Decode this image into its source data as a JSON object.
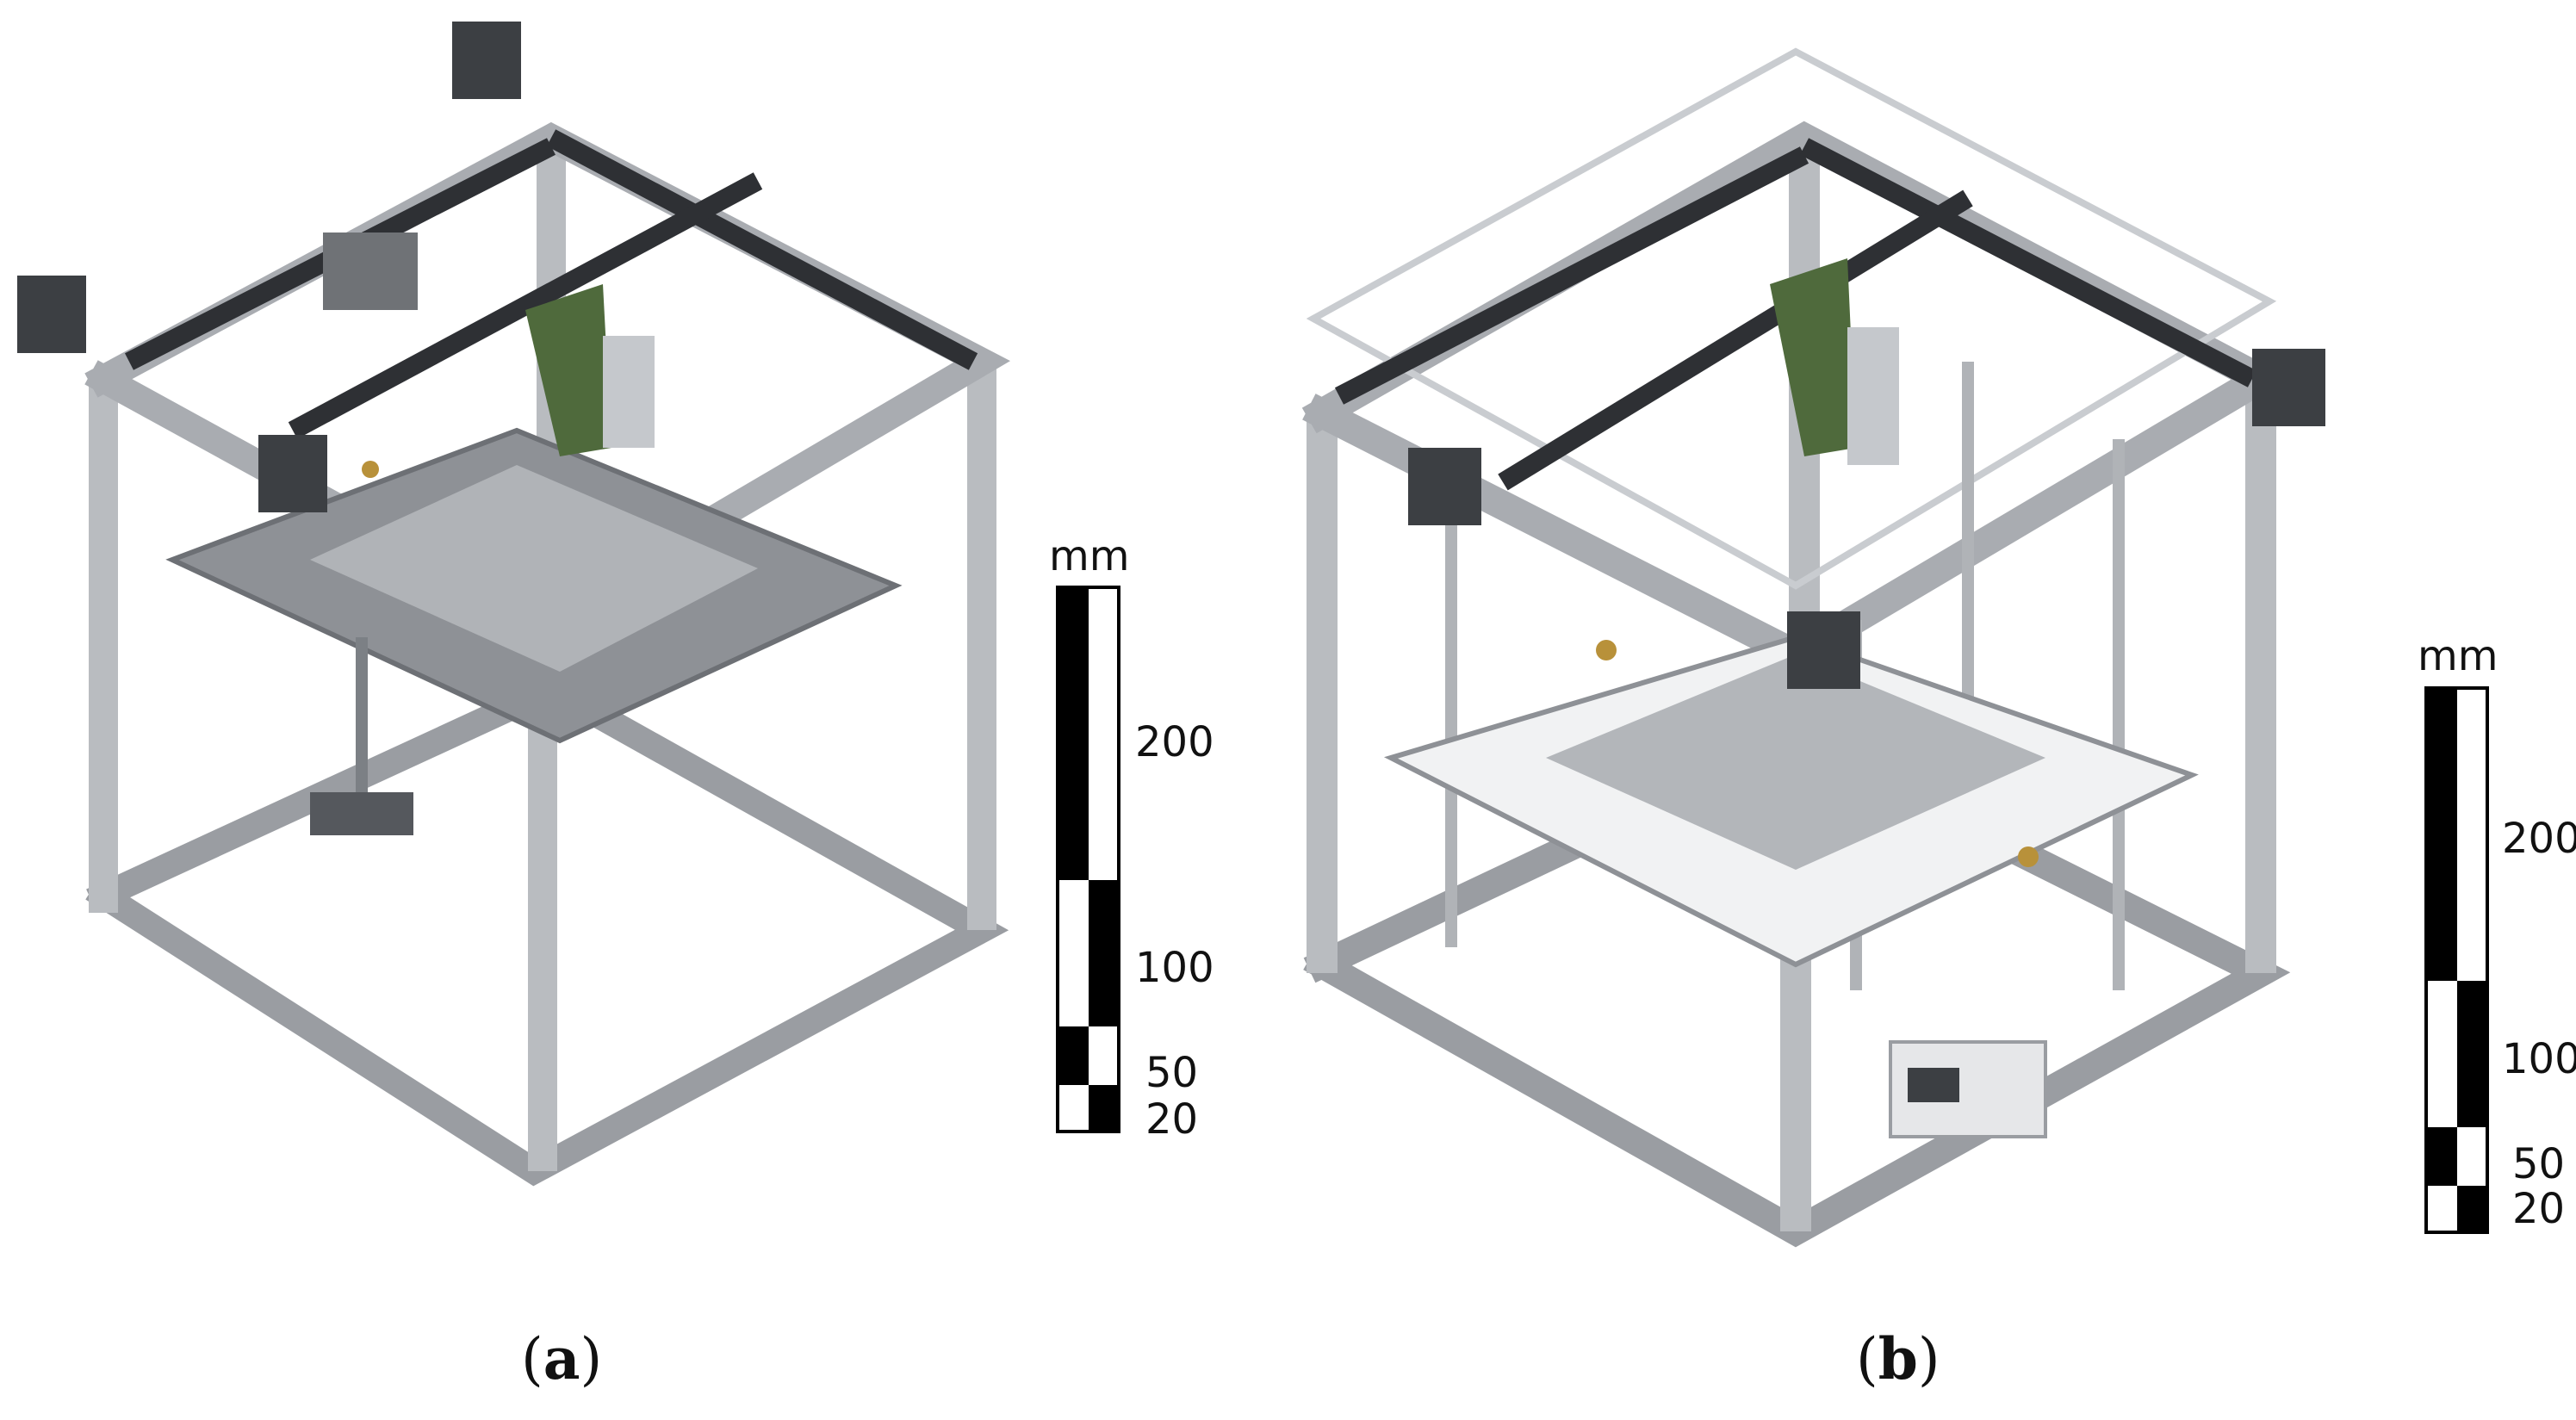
{
  "panels": [
    {
      "caption_open": "(",
      "caption_letter": "a",
      "caption_close": ")"
    },
    {
      "caption_open": "(",
      "caption_letter": "b",
      "caption_close": ")"
    }
  ],
  "scale_bar": {
    "unit": "mm",
    "ticks": [
      "200",
      "100",
      "50",
      "20"
    ]
  },
  "colors": {
    "frame": "#b9bcc0",
    "frame_dark": "#7c8085",
    "motor": "#3c3f43",
    "carriage_green": "#4f6a3c",
    "bed": "#8e9196",
    "brass": "#b8913a"
  }
}
